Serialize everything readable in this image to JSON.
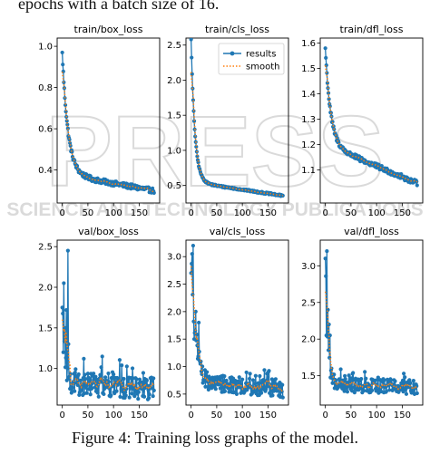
{
  "document": {
    "top_text": "epochs with a batch size of 16.",
    "caption": "Figure 4: Training loss graphs of the model."
  },
  "watermark": {
    "line1": "PRESS",
    "line2": "SCIENCE AND TECHNOLOGY PUBLICATIONS",
    "color": "#bdbdbd"
  },
  "colors": {
    "results": "#1f77b4",
    "smooth": "#ff7f0e",
    "frame": "#000000"
  },
  "chart_data": [
    {
      "id": "train_box",
      "type": "line",
      "title": "train/box_loss",
      "xlabel": "",
      "ylabel": "",
      "xlim": [
        -10,
        190
      ],
      "ylim": [
        0.24,
        1.04
      ],
      "xticks": [
        0,
        50,
        100,
        150
      ],
      "xtick_labels": [
        "0",
        "50",
        "100",
        "150"
      ],
      "yticks": [
        0.4,
        0.6,
        0.8,
        1.0
      ],
      "ytick_labels": [
        "0.4",
        "0.6",
        "0.8",
        "1.0"
      ],
      "grid": false,
      "legend": null,
      "curve": {
        "kind": "decay",
        "start": 0.97,
        "level": 0.38,
        "rate": 0.09,
        "slope": -0.00045,
        "noise": 0.012,
        "spikes": [],
        "n": 180
      },
      "series": [
        {
          "name": "results",
          "style": "line-dot"
        },
        {
          "name": "smooth",
          "style": "dotted"
        }
      ]
    },
    {
      "id": "train_cls",
      "type": "line",
      "title": "train/cls_loss",
      "xlabel": "",
      "ylabel": "",
      "xlim": [
        -10,
        190
      ],
      "ylim": [
        0.25,
        2.6
      ],
      "xticks": [
        0,
        50,
        100,
        150
      ],
      "xtick_labels": [
        "0",
        "50",
        "100",
        "150"
      ],
      "yticks": [
        0.5,
        1.0,
        1.5,
        2.0,
        2.5
      ],
      "ytick_labels": [
        "0.5",
        "1.0",
        "1.5",
        "2.0",
        "2.5"
      ],
      "grid": false,
      "legend": "top-right",
      "curve": {
        "kind": "decay",
        "start": 2.58,
        "level": 0.55,
        "rate": 0.14,
        "slope": -0.0011,
        "noise": 0.012,
        "spikes": [],
        "n": 180
      },
      "series": [
        {
          "name": "results",
          "style": "line-dot"
        },
        {
          "name": "smooth",
          "style": "dotted"
        }
      ]
    },
    {
      "id": "train_dfl",
      "type": "line",
      "title": "train/dfl_loss",
      "xlabel": "",
      "ylabel": "",
      "xlim": [
        -10,
        190
      ],
      "ylim": [
        0.97,
        1.62
      ],
      "xticks": [
        0,
        50,
        100,
        150
      ],
      "xtick_labels": [
        "0",
        "50",
        "100",
        "150"
      ],
      "yticks": [
        1.1,
        1.2,
        1.3,
        1.4,
        1.5,
        1.6
      ],
      "ytick_labels": [
        "1.1",
        "1.2",
        "1.3",
        "1.4",
        "1.5",
        "1.6"
      ],
      "grid": false,
      "legend": null,
      "curve": {
        "kind": "decay",
        "start": 1.58,
        "level": 1.2,
        "rate": 0.1,
        "slope": -0.00085,
        "noise": 0.01,
        "spikes": [],
        "n": 180
      },
      "series": [
        {
          "name": "results",
          "style": "line-dot"
        },
        {
          "name": "smooth",
          "style": "dotted"
        }
      ]
    },
    {
      "id": "val_box",
      "type": "line",
      "title": "val/box_loss",
      "xlabel": "",
      "ylabel": "",
      "xlim": [
        -10,
        190
      ],
      "ylim": [
        0.55,
        2.58
      ],
      "xticks": [
        0,
        50,
        100,
        150
      ],
      "xtick_labels": [
        "0",
        "50",
        "100",
        "150"
      ],
      "yticks": [
        1.0,
        1.5,
        2.0,
        2.5
      ],
      "ytick_labels": [
        "1.0",
        "1.5",
        "2.0",
        "2.5"
      ],
      "grid": false,
      "legend": null,
      "curve": {
        "kind": "noisy",
        "start": 1.75,
        "level": 0.82,
        "rate": 0.2,
        "slope": -0.0004,
        "noise": 0.14,
        "spikes": [
          [
            2,
            1.2
          ],
          [
            3,
            2.05
          ],
          [
            5,
            1.5
          ],
          [
            8,
            1.72
          ],
          [
            11,
            2.45
          ],
          [
            12,
            1.3
          ],
          [
            14,
            0.9
          ]
        ],
        "n": 180
      },
      "series": [
        {
          "name": "results",
          "style": "line-dot"
        },
        {
          "name": "smooth",
          "style": "dotted"
        }
      ]
    },
    {
      "id": "val_cls",
      "type": "line",
      "title": "val/cls_loss",
      "xlabel": "",
      "ylabel": "",
      "xlim": [
        -10,
        190
      ],
      "ylim": [
        0.3,
        3.3
      ],
      "xticks": [
        0,
        50,
        100,
        150
      ],
      "xtick_labels": [
        "0",
        "50",
        "100",
        "150"
      ],
      "yticks": [
        0.5,
        1.0,
        1.5,
        2.0,
        2.5,
        3.0
      ],
      "ytick_labels": [
        "0.5",
        "1.0",
        "1.5",
        "2.0",
        "2.5",
        "3.0"
      ],
      "grid": false,
      "legend": null,
      "curve": {
        "kind": "noisy",
        "start": 3.0,
        "level": 0.72,
        "rate": 0.12,
        "slope": -0.0007,
        "noise": 0.16,
        "spikes": [
          [
            0,
            2.7
          ],
          [
            2,
            3.05
          ],
          [
            4,
            3.2
          ],
          [
            6,
            1.5
          ],
          [
            9,
            2.0
          ],
          [
            15,
            1.8
          ]
        ],
        "n": 180
      },
      "series": [
        {
          "name": "results",
          "style": "line-dot"
        },
        {
          "name": "smooth",
          "style": "dotted"
        }
      ]
    },
    {
      "id": "val_dfl",
      "type": "line",
      "title": "val/dfl_loss",
      "xlabel": "",
      "ylabel": "",
      "xlim": [
        -10,
        190
      ],
      "ylim": [
        1.1,
        3.35
      ],
      "xticks": [
        0,
        50,
        100,
        150
      ],
      "xtick_labels": [
        "0",
        "50",
        "100",
        "150"
      ],
      "yticks": [
        1.5,
        2.0,
        2.5,
        3.0
      ],
      "ytick_labels": [
        "1.5",
        "2.0",
        "2.5",
        "3.0"
      ],
      "grid": false,
      "legend": null,
      "curve": {
        "kind": "noisy",
        "start": 3.1,
        "level": 1.38,
        "rate": 0.22,
        "slope": -0.0002,
        "noise": 0.1,
        "spikes": [
          [
            2,
            2.05
          ],
          [
            3,
            3.2
          ],
          [
            5,
            2.4
          ],
          [
            7,
            2.2
          ],
          [
            9,
            2.05
          ],
          [
            12,
            1.6
          ]
        ],
        "n": 180
      },
      "series": [
        {
          "name": "results",
          "style": "line-dot"
        },
        {
          "name": "smooth",
          "style": "dotted"
        }
      ]
    }
  ]
}
